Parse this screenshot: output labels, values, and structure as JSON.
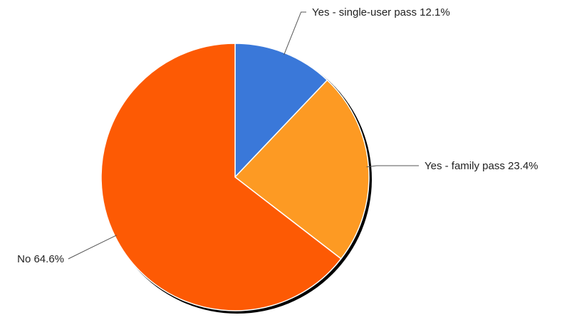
{
  "chart_data": {
    "type": "pie",
    "title": "",
    "slices": [
      {
        "label": "Yes - single-user pass",
        "value": 12.1,
        "display": "12.1%",
        "color": "#3a78d9"
      },
      {
        "label": "Yes - family pass",
        "value": 23.4,
        "display": "23.4%",
        "color": "#fd9a23"
      },
      {
        "label": "No",
        "value": 64.6,
        "display": "64.6%",
        "color": "#fd5a04"
      }
    ],
    "start_angle_deg": 0,
    "direction": "clockwise",
    "legend": "none",
    "labels": "outside-with-leader-lines"
  }
}
